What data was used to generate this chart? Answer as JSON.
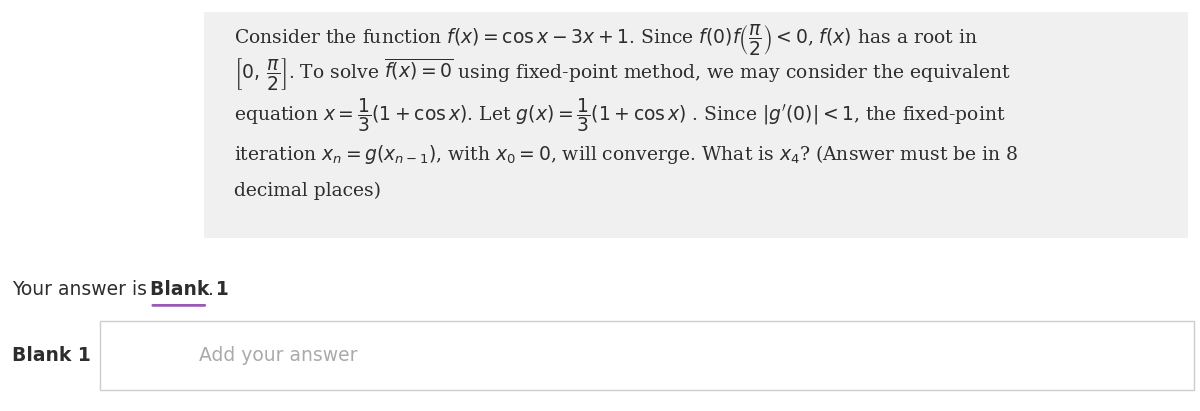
{
  "bg_color": "#f5f5f5",
  "white_bg": "#ffffff",
  "panel_bg": "#f0f0f0",
  "text_color": "#2d2d2d",
  "underline_color": "#9b59b6",
  "placeholder_color": "#aaaaaa",
  "line1": "Consider the function $f(x) = \\cos x - 3x + 1$. Since $f(0)f\\left(\\dfrac{\\pi}{2}\\right) < 0$, $f(x)$ has a root in",
  "line2": "$\\left[0,\\, \\dfrac{\\pi}{2}\\right]$. To solve $\\overline{f(x) = 0}$ using fixed-point method, we may consider the equivalent",
  "line3": "equation $x = \\dfrac{1}{3}(1 + \\cos x)$. Let $g(x) = \\dfrac{1}{3}(1 + \\cos x)$ . Since $|g'(0)| < 1$, the fixed-point",
  "line4": "iteration $x_n = g(x_{n-1})$, with $x_0 = 0$, will converge. What is $x_4$? (Answer must be in 8",
  "line5": "decimal places)",
  "your_answer_text": "Your answer is ",
  "blank1_bold": "Blank 1",
  "period": ".",
  "blank_label": "Blank 1",
  "placeholder": "Add your answer",
  "font_size_main": 13.5,
  "font_size_label": 13.5,
  "font_size_placeholder": 13.5
}
